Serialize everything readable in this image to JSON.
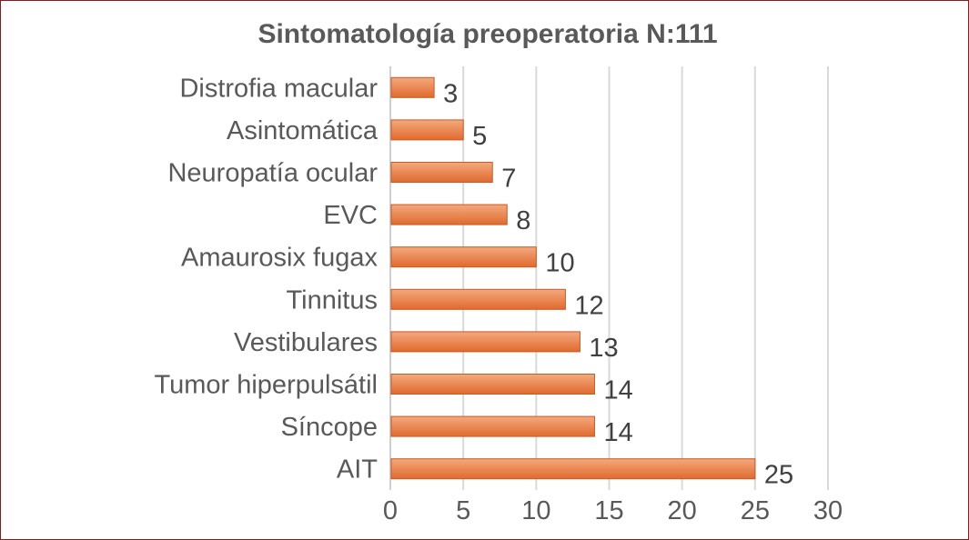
{
  "chart_data": {
    "type": "bar",
    "orientation": "horizontal",
    "title": "Sintomatología preoperatoria N:111",
    "categories": [
      "Distrofia macular",
      "Asintomática",
      "Neuropatía ocular",
      "EVC",
      "Amaurosix fugax",
      "Tinnitus",
      "Vestibulares",
      "Tumor hiperpulsátil",
      "Síncope",
      "AIT"
    ],
    "values": [
      3,
      5,
      7,
      8,
      10,
      12,
      13,
      14,
      14,
      25
    ],
    "xlim": [
      0,
      30
    ],
    "xticks": [
      0,
      5,
      10,
      15,
      20,
      25,
      30
    ],
    "xlabel": "",
    "ylabel": "",
    "grid": true,
    "legend": "none",
    "colors": {
      "bar_light": "#f4a97e",
      "bar_dark": "#e06a2e",
      "bar_stroke": "#c85a22",
      "frame": "#8b1a1a"
    }
  }
}
